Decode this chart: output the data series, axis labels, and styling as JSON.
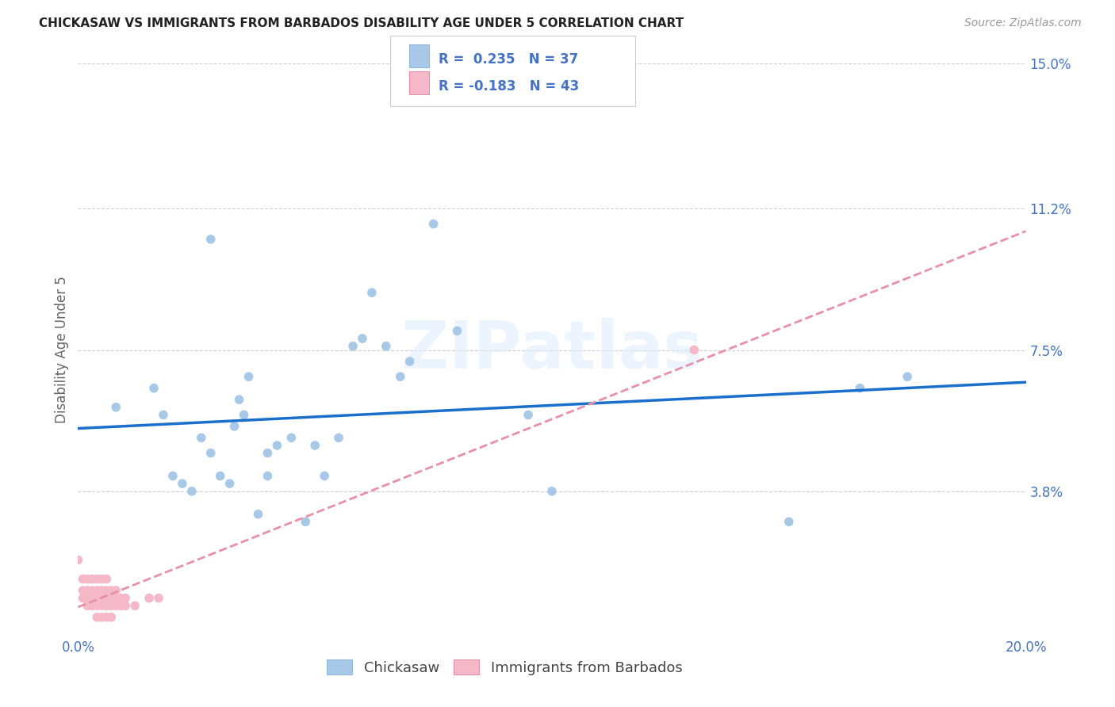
{
  "title": "CHICKASAW VS IMMIGRANTS FROM BARBADOS DISABILITY AGE UNDER 5 CORRELATION CHART",
  "source": "Source: ZipAtlas.com",
  "ylabel": "Disability Age Under 5",
  "xlim": [
    0.0,
    0.2
  ],
  "ylim": [
    0.0,
    0.15
  ],
  "yticks_right": [
    0.0,
    0.038,
    0.075,
    0.112,
    0.15
  ],
  "ytick_labels_right": [
    "",
    "3.8%",
    "7.5%",
    "11.2%",
    "15.0%"
  ],
  "chickasaw_color": "#a8c8e8",
  "barbados_color": "#f4b8c8",
  "chickasaw_line_color": "#1a6fcc",
  "barbados_line_color": "#e890a8",
  "grid_color": "#d0d0d0",
  "background_color": "#ffffff",
  "watermark": "ZIPatlas",
  "legend_R1": "R =  0.235",
  "legend_N1": "N = 37",
  "legend_R2": "R = -0.183",
  "legend_N2": "N = 43",
  "chickasaw_x": [
    0.008,
    0.016,
    0.018,
    0.02,
    0.022,
    0.024,
    0.026,
    0.028,
    0.03,
    0.032,
    0.033,
    0.034,
    0.035,
    0.036,
    0.038,
    0.04,
    0.042,
    0.045,
    0.048,
    0.05,
    0.052,
    0.055,
    0.058,
    0.06,
    0.062,
    0.065,
    0.068,
    0.07,
    0.075,
    0.08,
    0.095,
    0.1,
    0.15,
    0.165,
    0.175,
    0.04,
    0.028
  ],
  "chickasaw_y": [
    0.06,
    0.065,
    0.058,
    0.042,
    0.04,
    0.038,
    0.052,
    0.048,
    0.042,
    0.04,
    0.055,
    0.062,
    0.058,
    0.068,
    0.032,
    0.042,
    0.05,
    0.052,
    0.03,
    0.05,
    0.042,
    0.052,
    0.076,
    0.078,
    0.09,
    0.076,
    0.068,
    0.072,
    0.108,
    0.08,
    0.058,
    0.038,
    0.03,
    0.065,
    0.068,
    0.048,
    0.104
  ],
  "barbados_x": [
    0.0,
    0.001,
    0.001,
    0.001,
    0.002,
    0.002,
    0.002,
    0.002,
    0.003,
    0.003,
    0.003,
    0.003,
    0.003,
    0.004,
    0.004,
    0.004,
    0.004,
    0.004,
    0.005,
    0.005,
    0.005,
    0.005,
    0.005,
    0.006,
    0.006,
    0.006,
    0.006,
    0.006,
    0.007,
    0.007,
    0.007,
    0.007,
    0.008,
    0.008,
    0.008,
    0.009,
    0.009,
    0.01,
    0.01,
    0.012,
    0.015,
    0.017,
    0.13
  ],
  "barbados_y": [
    0.02,
    0.012,
    0.015,
    0.01,
    0.008,
    0.01,
    0.012,
    0.015,
    0.008,
    0.01,
    0.012,
    0.015,
    0.008,
    0.008,
    0.01,
    0.012,
    0.015,
    0.005,
    0.008,
    0.01,
    0.012,
    0.015,
    0.005,
    0.008,
    0.01,
    0.012,
    0.015,
    0.005,
    0.008,
    0.01,
    0.012,
    0.005,
    0.008,
    0.01,
    0.012,
    0.008,
    0.01,
    0.008,
    0.01,
    0.008,
    0.01,
    0.01,
    0.075
  ]
}
